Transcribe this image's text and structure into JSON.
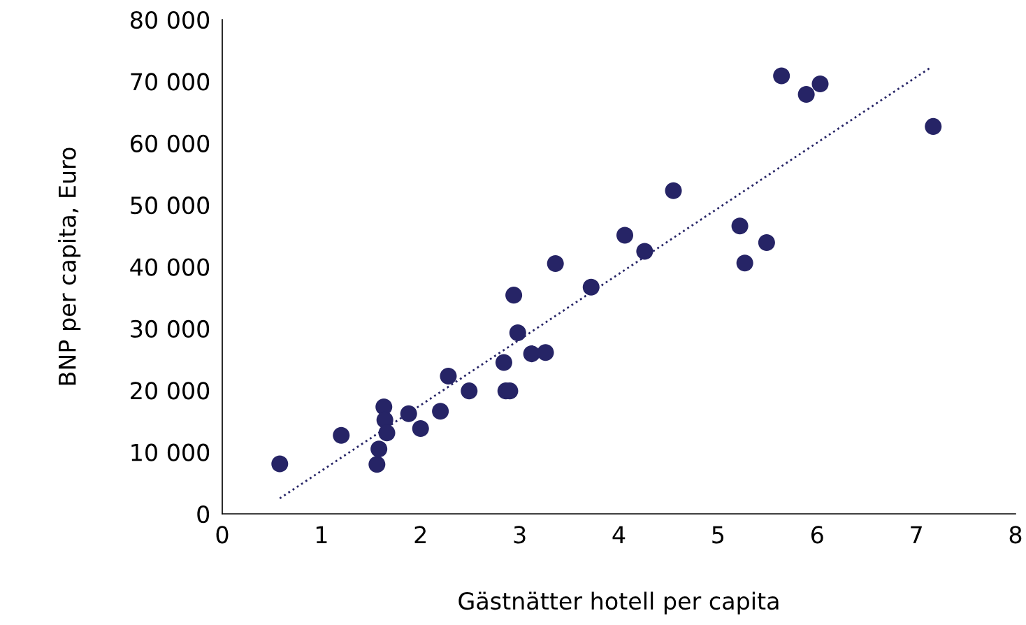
{
  "chart_data": {
    "type": "scatter",
    "xlabel": "Gästnätter hotell per capita",
    "ylabel": "BNP per capita, Euro",
    "xlim": [
      0,
      8
    ],
    "xticks": [
      0,
      1,
      2,
      3,
      4,
      5,
      6,
      7,
      8
    ],
    "ylim": [
      0,
      80000
    ],
    "yticks": [
      {
        "value": 0,
        "label": "0"
      },
      {
        "value": 10000,
        "label": "10 000"
      },
      {
        "value": 20000,
        "label": "20 000"
      },
      {
        "value": 30000,
        "label": "30 000"
      },
      {
        "value": 40000,
        "label": "40 000"
      },
      {
        "value": 50000,
        "label": "50 000"
      },
      {
        "value": 60000,
        "label": "60 000"
      },
      {
        "value": 70000,
        "label": "70 000"
      },
      {
        "value": 80000,
        "label": "80 000"
      }
    ],
    "grid": false,
    "legend": false,
    "series": [
      {
        "color": "#262466",
        "marker": "circle",
        "x": [
          0.58,
          1.2,
          1.56,
          1.58,
          1.63,
          1.64,
          1.66,
          1.88,
          2.0,
          2.2,
          2.28,
          2.49,
          2.84,
          2.86,
          2.9,
          2.94,
          2.98,
          3.12,
          3.26,
          3.36,
          3.72,
          4.06,
          4.26,
          4.55,
          5.22,
          5.27,
          5.49,
          5.64,
          5.89,
          6.03,
          7.17
        ],
        "values": [
          8100,
          12700,
          8000,
          10500,
          17300,
          15200,
          13100,
          16200,
          13800,
          16600,
          22300,
          19900,
          24500,
          19900,
          19900,
          35400,
          29300,
          25900,
          26100,
          40500,
          36700,
          45100,
          42500,
          52300,
          46600,
          40600,
          43900,
          70900,
          67900,
          69600,
          62700
        ]
      },
      {
        "type": "line",
        "color": "#262466",
        "line_style": "dotted",
        "marker": "none",
        "x": [
          0.58,
          7.15
        ],
        "values": [
          2500,
          72300
        ]
      }
    ]
  }
}
